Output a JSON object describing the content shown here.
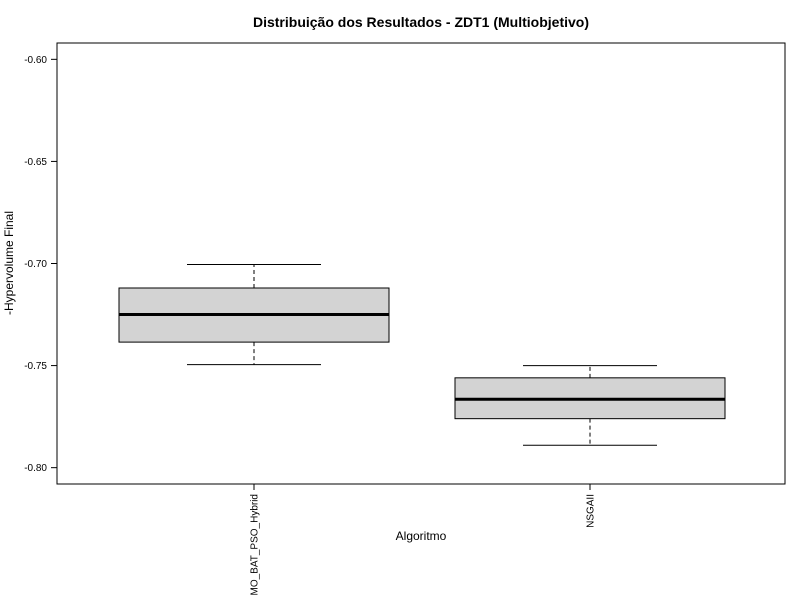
{
  "chart_data": {
    "type": "boxplot",
    "title": "Distribuição dos Resultados - ZDT1 (Multiobjetivo)",
    "xlabel": "Algoritmo",
    "ylabel": "-Hypervolume Final",
    "ylim": [
      -0.808,
      -0.592
    ],
    "yticks": [
      "-0.80",
      "-0.75",
      "-0.70",
      "-0.65",
      "-0.60"
    ],
    "ytick_values": [
      -0.8,
      -0.75,
      -0.7,
      -0.65,
      -0.6
    ],
    "categories": [
      "MO_BAT_PSO_Hybrid",
      "NSGAII"
    ],
    "boxes": [
      {
        "whisker_low": -0.7495,
        "q1": -0.7385,
        "median": -0.725,
        "q3": -0.712,
        "whisker_high": -0.7005
      },
      {
        "whisker_low": -0.789,
        "q1": -0.776,
        "median": -0.7665,
        "q3": -0.756,
        "whisker_high": -0.75
      }
    ],
    "box_fill": "#d3d3d3",
    "grid": false
  }
}
